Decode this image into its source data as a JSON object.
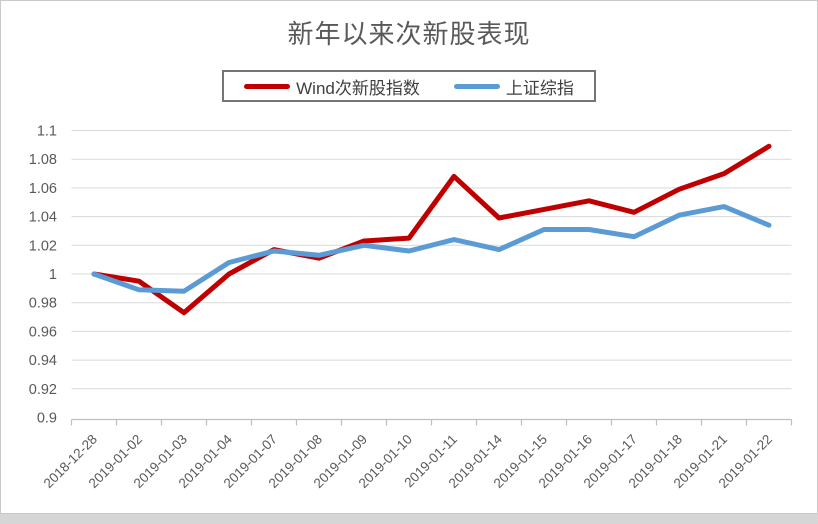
{
  "title": "新年以来次新股表现",
  "legend": [
    {
      "name": "Wind次新股指数",
      "color": "#C00000"
    },
    {
      "name": "上证综指",
      "color": "#5B9BD5"
    }
  ],
  "chart_data": {
    "type": "line",
    "title": "新年以来次新股表现",
    "categories": [
      "2018-12-28",
      "2019-01-02",
      "2019-01-03",
      "2019-01-04",
      "2019-01-07",
      "2019-01-08",
      "2019-01-09",
      "2019-01-10",
      "2019-01-11",
      "2019-01-14",
      "2019-01-15",
      "2019-01-16",
      "2019-01-17",
      "2019-01-18",
      "2019-01-21",
      "2019-01-22"
    ],
    "series": [
      {
        "name": "Wind次新股指数",
        "color": "#C00000",
        "values": [
          1.0,
          0.995,
          0.973,
          1.0,
          1.017,
          1.011,
          1.023,
          1.025,
          1.068,
          1.039,
          1.045,
          1.051,
          1.043,
          1.059,
          1.07,
          1.089
        ]
      },
      {
        "name": "上证综指",
        "color": "#5B9BD5",
        "values": [
          1.0,
          0.989,
          0.988,
          1.008,
          1.016,
          1.013,
          1.02,
          1.016,
          1.024,
          1.017,
          1.031,
          1.031,
          1.026,
          1.041,
          1.047,
          1.034
        ]
      }
    ],
    "ylim": [
      0.9,
      1.1
    ],
    "ytick_step": 0.02,
    "ytick_labels": [
      "1.1",
      "1.08",
      "1.06",
      "1.04",
      "1.02",
      "1",
      "0.98",
      "0.96",
      "0.94",
      "0.92",
      "0.9"
    ],
    "xlabel": "",
    "ylabel": "",
    "grid": true,
    "legend_position": "top-center"
  },
  "colors": {
    "gridline": "#D9D9D9",
    "axis_line": "#BFBFBF",
    "axis_text": "#595959",
    "title_text": "#595959",
    "legend_text": "#3F3F3F",
    "legend_border": "#757575",
    "frame_border": "#C9C9C9",
    "bottom_strip": "#D6D6D6"
  }
}
